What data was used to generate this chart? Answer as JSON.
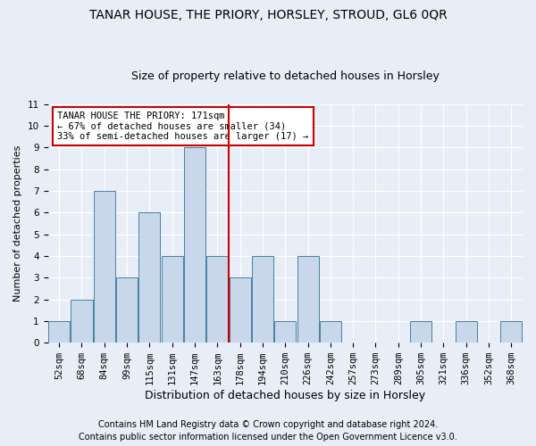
{
  "title1": "TANAR HOUSE, THE PRIORY, HORSLEY, STROUD, GL6 0QR",
  "title2": "Size of property relative to detached houses in Horsley",
  "xlabel": "Distribution of detached houses by size in Horsley",
  "ylabel": "Number of detached properties",
  "categories": [
    "52sqm",
    "68sqm",
    "84sqm",
    "99sqm",
    "115sqm",
    "131sqm",
    "147sqm",
    "163sqm",
    "178sqm",
    "194sqm",
    "210sqm",
    "226sqm",
    "242sqm",
    "257sqm",
    "273sqm",
    "289sqm",
    "305sqm",
    "321sqm",
    "336sqm",
    "352sqm",
    "368sqm"
  ],
  "values": [
    1,
    2,
    7,
    3,
    6,
    4,
    9,
    4,
    3,
    4,
    1,
    4,
    1,
    0,
    0,
    0,
    1,
    0,
    1,
    0,
    1
  ],
  "bar_color": "#c8d8ea",
  "bar_edgecolor": "#4a80a0",
  "vline_index": 7,
  "annotation_text": "TANAR HOUSE THE PRIORY: 171sqm\n← 67% of detached houses are smaller (34)\n33% of semi-detached houses are larger (17) →",
  "vline_color": "#cc0000",
  "annotation_box_edgecolor": "#cc0000",
  "annotation_box_facecolor": "#ffffff",
  "ylim": [
    0,
    11
  ],
  "yticks": [
    0,
    1,
    2,
    3,
    4,
    5,
    6,
    7,
    8,
    9,
    10,
    11
  ],
  "footer1": "Contains HM Land Registry data © Crown copyright and database right 2024.",
  "footer2": "Contains public sector information licensed under the Open Government Licence v3.0.",
  "background_color": "#e8eef8",
  "plot_background": "#e8eef8",
  "title1_fontsize": 10,
  "title2_fontsize": 9,
  "xlabel_fontsize": 9,
  "ylabel_fontsize": 8,
  "tick_fontsize": 7.5,
  "annotation_fontsize": 7.5,
  "footer_fontsize": 7
}
